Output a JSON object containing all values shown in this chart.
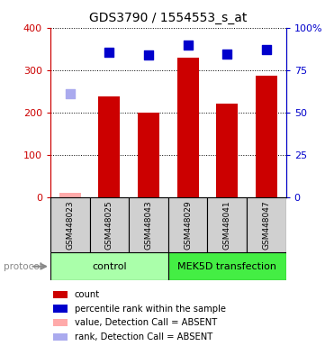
{
  "title": "GDS3790 / 1554553_s_at",
  "samples": [
    "GSM448023",
    "GSM448025",
    "GSM448043",
    "GSM448029",
    "GSM448041",
    "GSM448047"
  ],
  "bar_values": [
    10,
    238,
    200,
    330,
    220,
    286
  ],
  "bar_colors": [
    "#ffaaaa",
    "#cc0000",
    "#cc0000",
    "#cc0000",
    "#cc0000",
    "#cc0000"
  ],
  "dot_values_left_scale": [
    245,
    342,
    336,
    360,
    338,
    348
  ],
  "dot_colors": [
    "#aaaaee",
    "#0000cc",
    "#0000cc",
    "#0000cc",
    "#0000cc",
    "#0000cc"
  ],
  "ylim_left": [
    0,
    400
  ],
  "ylim_right": [
    0,
    100
  ],
  "yticks_left": [
    0,
    100,
    200,
    300,
    400
  ],
  "ytick_labels_left": [
    "0",
    "100",
    "200",
    "300",
    "400"
  ],
  "yticks_right": [
    0,
    25,
    50,
    75,
    100
  ],
  "ytick_labels_right": [
    "0",
    "25",
    "50",
    "75",
    "100%"
  ],
  "groups": [
    {
      "label": "control",
      "start": 0,
      "end": 3,
      "color": "#aaffaa"
    },
    {
      "label": "MEK5D transfection",
      "start": 3,
      "end": 6,
      "color": "#44ee44"
    }
  ],
  "protocol_label": "protocol",
  "legend_items": [
    {
      "color": "#cc0000",
      "label": "count"
    },
    {
      "color": "#0000cc",
      "label": "percentile rank within the sample"
    },
    {
      "color": "#ffaaaa",
      "label": "value, Detection Call = ABSENT"
    },
    {
      "color": "#aaaaee",
      "label": "rank, Detection Call = ABSENT"
    }
  ],
  "bar_width": 0.55,
  "dot_size": 45,
  "plot_bg": "#ffffff",
  "sample_box_color": "#d0d0d0",
  "left_axis_color": "#cc0000",
  "right_axis_color": "#0000cc"
}
